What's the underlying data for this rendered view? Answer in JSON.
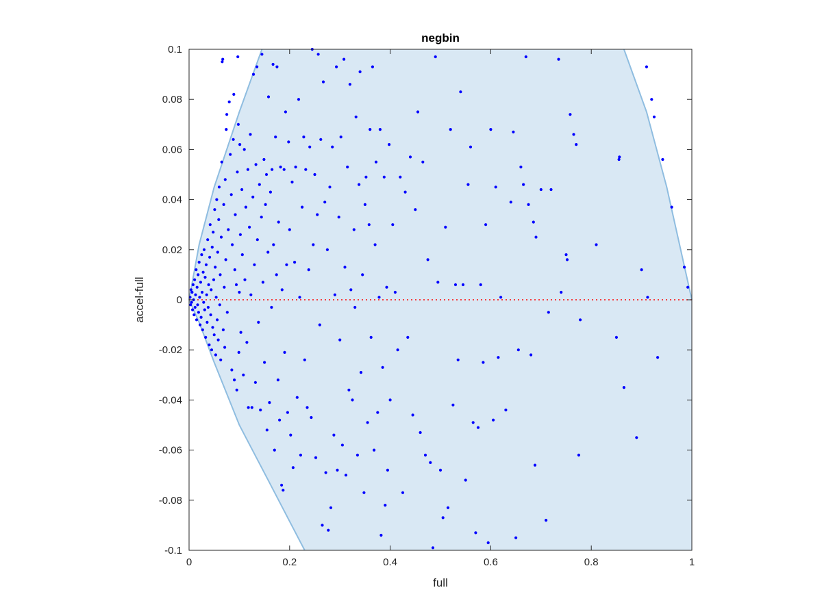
{
  "chart_data": {
    "type": "scatter",
    "title": "negbin",
    "xlabel": "full",
    "ylabel": "accel-full",
    "xlim": [
      0,
      1
    ],
    "ylim": [
      -0.1,
      0.1
    ],
    "xticks": [
      "0",
      "0.2",
      "0.4",
      "0.6",
      "0.8",
      "1"
    ],
    "yticks": [
      "-0.1",
      "-0.08",
      "-0.06",
      "-0.04",
      "-0.02",
      "0",
      "0.02",
      "0.04",
      "0.06",
      "0.08",
      "0.1"
    ],
    "grid": false,
    "legend": "none",
    "reference_line": {
      "y": 0,
      "color": "#ff0000",
      "style": "dotted"
    },
    "band": {
      "fill": "#d9e8f4",
      "edge": "#8fbde0",
      "upper_boundary": [
        [
          0,
          0
        ],
        [
          0.02,
          0.022
        ],
        [
          0.05,
          0.045
        ],
        [
          0.1,
          0.075
        ],
        [
          0.145,
          0.1
        ]
      ],
      "right_boundary": [
        [
          0.865,
          0.1
        ],
        [
          0.91,
          0.075
        ],
        [
          0.95,
          0.045
        ],
        [
          1.0,
          0.0
        ]
      ],
      "lower_boundary": [
        [
          0,
          0
        ],
        [
          0.02,
          -0.009
        ],
        [
          0.05,
          -0.025
        ],
        [
          0.1,
          -0.05
        ],
        [
          0.16,
          -0.073
        ],
        [
          0.23,
          -0.1
        ]
      ]
    },
    "marker_color": "#0000ff",
    "points": [
      [
        0.002,
        0.001
      ],
      [
        0.003,
        -0.002
      ],
      [
        0.004,
        0.004
      ],
      [
        0.005,
        -0.001
      ],
      [
        0.006,
        0.003
      ],
      [
        0.007,
        -0.004
      ],
      [
        0.008,
        0.006
      ],
      [
        0.009,
        0.0
      ],
      [
        0.01,
        -0.006
      ],
      [
        0.011,
        0.008
      ],
      [
        0.012,
        -0.003
      ],
      [
        0.013,
        0.002
      ],
      [
        0.014,
        0.012
      ],
      [
        0.015,
        -0.008
      ],
      [
        0.016,
        0.005
      ],
      [
        0.017,
        -0.002
      ],
      [
        0.018,
        0.01
      ],
      [
        0.019,
        -0.005
      ],
      [
        0.02,
        0.015
      ],
      [
        0.021,
        0.001
      ],
      [
        0.022,
        -0.01
      ],
      [
        0.023,
        0.007
      ],
      [
        0.024,
        -0.007
      ],
      [
        0.025,
        0.018
      ],
      [
        0.026,
        0.003
      ],
      [
        0.027,
        -0.012
      ],
      [
        0.028,
        0.011
      ],
      [
        0.029,
        -0.001
      ],
      [
        0.03,
        0.02
      ],
      [
        0.031,
        -0.004
      ],
      [
        0.032,
        0.009
      ],
      [
        0.033,
        -0.015
      ],
      [
        0.034,
        0.014
      ],
      [
        0.035,
        0.002
      ],
      [
        0.036,
        -0.009
      ],
      [
        0.037,
        0.024
      ],
      [
        0.038,
        -0.003
      ],
      [
        0.039,
        0.006
      ],
      [
        0.04,
        -0.018
      ],
      [
        0.041,
        0.017
      ],
      [
        0.042,
        0.03
      ],
      [
        0.043,
        -0.006
      ],
      [
        0.044,
        0.004
      ],
      [
        0.045,
        -0.02
      ],
      [
        0.046,
        0.021
      ],
      [
        0.047,
        -0.011
      ],
      [
        0.048,
        0.027
      ],
      [
        0.049,
        0.008
      ],
      [
        0.05,
        -0.014
      ],
      [
        0.051,
        0.036
      ],
      [
        0.052,
        0.013
      ],
      [
        0.053,
        -0.022
      ],
      [
        0.054,
        0.001
      ],
      [
        0.055,
        0.04
      ],
      [
        0.056,
        -0.008
      ],
      [
        0.057,
        0.019
      ],
      [
        0.058,
        -0.016
      ],
      [
        0.059,
        0.032
      ],
      [
        0.06,
        0.045
      ],
      [
        0.061,
        -0.002
      ],
      [
        0.062,
        0.01
      ],
      [
        0.063,
        -0.024
      ],
      [
        0.064,
        0.025
      ],
      [
        0.065,
        0.055
      ],
      [
        0.066,
        0.095
      ],
      [
        0.067,
        0.096
      ],
      [
        0.068,
        -0.012
      ],
      [
        0.069,
        0.038
      ],
      [
        0.07,
        0.005
      ],
      [
        0.071,
        -0.019
      ],
      [
        0.072,
        0.048
      ],
      [
        0.073,
        0.016
      ],
      [
        0.074,
        0.068
      ],
      [
        0.075,
        0.074
      ],
      [
        0.076,
        -0.005
      ],
      [
        0.078,
        0.028
      ],
      [
        0.08,
        0.079
      ],
      [
        0.082,
        0.058
      ],
      [
        0.084,
        0.042
      ],
      [
        0.085,
        -0.028
      ],
      [
        0.086,
        0.022
      ],
      [
        0.088,
        0.064
      ],
      [
        0.089,
        0.082
      ],
      [
        0.09,
        -0.032
      ],
      [
        0.091,
        0.012
      ],
      [
        0.092,
        0.034
      ],
      [
        0.094,
        0.006
      ],
      [
        0.095,
        -0.036
      ],
      [
        0.096,
        0.051
      ],
      [
        0.097,
        0.097
      ],
      [
        0.098,
        0.07
      ],
      [
        0.099,
        -0.021
      ],
      [
        0.1,
        0.003
      ],
      [
        0.101,
        0.062
      ],
      [
        0.102,
        0.026
      ],
      [
        0.103,
        -0.013
      ],
      [
        0.105,
        0.044
      ],
      [
        0.106,
        0.018
      ],
      [
        0.108,
        -0.03
      ],
      [
        0.11,
        0.06
      ],
      [
        0.111,
        0.008
      ],
      [
        0.113,
        0.037
      ],
      [
        0.115,
        -0.017
      ],
      [
        0.117,
        0.052
      ],
      [
        0.118,
        -0.043
      ],
      [
        0.12,
        0.029
      ],
      [
        0.122,
        0.066
      ],
      [
        0.123,
        0.002
      ],
      [
        0.125,
        -0.043
      ],
      [
        0.127,
        0.041
      ],
      [
        0.128,
        0.09
      ],
      [
        0.13,
        0.014
      ],
      [
        0.132,
        -0.033
      ],
      [
        0.133,
        0.054
      ],
      [
        0.135,
        0.093
      ],
      [
        0.136,
        0.024
      ],
      [
        0.138,
        -0.009
      ],
      [
        0.14,
        0.046
      ],
      [
        0.142,
        -0.044
      ],
      [
        0.144,
        0.033
      ],
      [
        0.145,
        0.098
      ],
      [
        0.147,
        0.007
      ],
      [
        0.149,
        0.056
      ],
      [
        0.15,
        -0.025
      ],
      [
        0.152,
        0.038
      ],
      [
        0.154,
        0.05
      ],
      [
        0.155,
        -0.052
      ],
      [
        0.157,
        0.019
      ],
      [
        0.158,
        0.081
      ],
      [
        0.16,
        -0.041
      ],
      [
        0.162,
        0.043
      ],
      [
        0.164,
        -0.003
      ],
      [
        0.165,
        0.052
      ],
      [
        0.167,
        0.094
      ],
      [
        0.168,
        0.022
      ],
      [
        0.17,
        -0.06
      ],
      [
        0.172,
        0.065
      ],
      [
        0.174,
        0.01
      ],
      [
        0.175,
        0.093
      ],
      [
        0.177,
        -0.032
      ],
      [
        0.178,
        0.031
      ],
      [
        0.18,
        -0.048
      ],
      [
        0.182,
        0.053
      ],
      [
        0.184,
        -0.074
      ],
      [
        0.185,
        0.004
      ],
      [
        0.187,
        -0.076
      ],
      [
        0.189,
        0.052
      ],
      [
        0.19,
        -0.021
      ],
      [
        0.192,
        0.075
      ],
      [
        0.194,
        0.014
      ],
      [
        0.196,
        -0.045
      ],
      [
        0.198,
        0.063
      ],
      [
        0.2,
        0.028
      ],
      [
        0.202,
        -0.054
      ],
      [
        0.205,
        0.047
      ],
      [
        0.207,
        -0.067
      ],
      [
        0.21,
        0.015
      ],
      [
        0.212,
        0.053
      ],
      [
        0.215,
        -0.039
      ],
      [
        0.218,
        0.08
      ],
      [
        0.22,
        0.001
      ],
      [
        0.222,
        -0.062
      ],
      [
        0.225,
        0.037
      ],
      [
        0.228,
        0.065
      ],
      [
        0.23,
        -0.024
      ],
      [
        0.232,
        0.052
      ],
      [
        0.235,
        -0.043
      ],
      [
        0.238,
        0.012
      ],
      [
        0.24,
        0.061
      ],
      [
        0.243,
        -0.047
      ],
      [
        0.245,
        0.1
      ],
      [
        0.247,
        0.022
      ],
      [
        0.25,
        0.05
      ],
      [
        0.252,
        -0.063
      ],
      [
        0.255,
        0.034
      ],
      [
        0.257,
        0.098
      ],
      [
        0.26,
        -0.01
      ],
      [
        0.262,
        0.064
      ],
      [
        0.265,
        -0.09
      ],
      [
        0.267,
        0.087
      ],
      [
        0.27,
        0.039
      ],
      [
        0.272,
        -0.069
      ],
      [
        0.275,
        0.02
      ],
      [
        0.277,
        -0.092
      ],
      [
        0.28,
        0.045
      ],
      [
        0.282,
        -0.083
      ],
      [
        0.285,
        0.061
      ],
      [
        0.288,
        -0.054
      ],
      [
        0.29,
        0.002
      ],
      [
        0.293,
        0.093
      ],
      [
        0.295,
        -0.068
      ],
      [
        0.298,
        0.033
      ],
      [
        0.3,
        -0.016
      ],
      [
        0.302,
        0.065
      ],
      [
        0.305,
        -0.058
      ],
      [
        0.308,
        0.096
      ],
      [
        0.31,
        0.013
      ],
      [
        0.312,
        -0.07
      ],
      [
        0.315,
        0.053
      ],
      [
        0.318,
        -0.036
      ],
      [
        0.32,
        0.086
      ],
      [
        0.322,
        0.004
      ],
      [
        0.325,
        -0.04
      ],
      [
        0.328,
        0.028
      ],
      [
        0.33,
        -0.003
      ],
      [
        0.332,
        0.073
      ],
      [
        0.335,
        -0.062
      ],
      [
        0.338,
        0.046
      ],
      [
        0.34,
        0.091
      ],
      [
        0.342,
        -0.029
      ],
      [
        0.345,
        0.01
      ],
      [
        0.348,
        -0.077
      ],
      [
        0.35,
        0.038
      ],
      [
        0.352,
        0.049
      ],
      [
        0.355,
        -0.049
      ],
      [
        0.358,
        0.03
      ],
      [
        0.36,
        0.068
      ],
      [
        0.362,
        -0.015
      ],
      [
        0.365,
        0.093
      ],
      [
        0.368,
        -0.06
      ],
      [
        0.37,
        0.022
      ],
      [
        0.372,
        0.055
      ],
      [
        0.375,
        -0.045
      ],
      [
        0.378,
        0.001
      ],
      [
        0.38,
        0.068
      ],
      [
        0.382,
        -0.094
      ],
      [
        0.385,
        -0.027
      ],
      [
        0.388,
        0.049
      ],
      [
        0.39,
        -0.082
      ],
      [
        0.393,
        0.005
      ],
      [
        0.395,
        -0.068
      ],
      [
        0.398,
        0.062
      ],
      [
        0.4,
        -0.04
      ],
      [
        0.405,
        0.03
      ],
      [
        0.41,
        0.003
      ],
      [
        0.415,
        -0.02
      ],
      [
        0.42,
        0.049
      ],
      [
        0.425,
        -0.077
      ],
      [
        0.43,
        0.043
      ],
      [
        0.435,
        -0.015
      ],
      [
        0.44,
        0.057
      ],
      [
        0.445,
        -0.046
      ],
      [
        0.45,
        0.036
      ],
      [
        0.455,
        0.075
      ],
      [
        0.46,
        -0.053
      ],
      [
        0.465,
        0.055
      ],
      [
        0.47,
        -0.062
      ],
      [
        0.475,
        0.016
      ],
      [
        0.48,
        -0.065
      ],
      [
        0.485,
        -0.099
      ],
      [
        0.49,
        0.097
      ],
      [
        0.495,
        0.007
      ],
      [
        0.5,
        -0.068
      ],
      [
        0.505,
        -0.087
      ],
      [
        0.51,
        0.029
      ],
      [
        0.515,
        -0.083
      ],
      [
        0.52,
        0.068
      ],
      [
        0.525,
        -0.042
      ],
      [
        0.53,
        0.006
      ],
      [
        0.535,
        -0.024
      ],
      [
        0.54,
        0.083
      ],
      [
        0.545,
        0.006
      ],
      [
        0.55,
        -0.072
      ],
      [
        0.555,
        0.046
      ],
      [
        0.56,
        0.061
      ],
      [
        0.565,
        -0.049
      ],
      [
        0.57,
        -0.093
      ],
      [
        0.575,
        -0.051
      ],
      [
        0.58,
        0.006
      ],
      [
        0.585,
        -0.025
      ],
      [
        0.59,
        0.03
      ],
      [
        0.595,
        -0.097
      ],
      [
        0.6,
        0.068
      ],
      [
        0.605,
        -0.048
      ],
      [
        0.61,
        0.045
      ],
      [
        0.615,
        -0.023
      ],
      [
        0.62,
        0.001
      ],
      [
        0.63,
        -0.044
      ],
      [
        0.64,
        0.039
      ],
      [
        0.645,
        0.067
      ],
      [
        0.65,
        -0.095
      ],
      [
        0.655,
        -0.02
      ],
      [
        0.66,
        0.053
      ],
      [
        0.665,
        0.046
      ],
      [
        0.67,
        0.097
      ],
      [
        0.675,
        0.038
      ],
      [
        0.68,
        -0.022
      ],
      [
        0.685,
        0.031
      ],
      [
        0.688,
        -0.066
      ],
      [
        0.69,
        0.025
      ],
      [
        0.7,
        0.044
      ],
      [
        0.71,
        -0.088
      ],
      [
        0.715,
        -0.005
      ],
      [
        0.72,
        0.044
      ],
      [
        0.735,
        0.096
      ],
      [
        0.74,
        0.003
      ],
      [
        0.75,
        0.018
      ],
      [
        0.752,
        0.016
      ],
      [
        0.758,
        0.074
      ],
      [
        0.765,
        0.066
      ],
      [
        0.77,
        0.062
      ],
      [
        0.775,
        -0.062
      ],
      [
        0.778,
        -0.008
      ],
      [
        0.81,
        0.022
      ],
      [
        0.85,
        -0.015
      ],
      [
        0.855,
        0.056
      ],
      [
        0.856,
        0.057
      ],
      [
        0.865,
        -0.035
      ],
      [
        0.89,
        -0.055
      ],
      [
        0.9,
        0.012
      ],
      [
        0.91,
        0.093
      ],
      [
        0.912,
        0.001
      ],
      [
        0.92,
        0.08
      ],
      [
        0.925,
        0.073
      ],
      [
        0.932,
        -0.023
      ],
      [
        0.942,
        0.056
      ],
      [
        0.96,
        0.037
      ],
      [
        0.985,
        0.013
      ],
      [
        0.992,
        0.005
      ]
    ]
  }
}
